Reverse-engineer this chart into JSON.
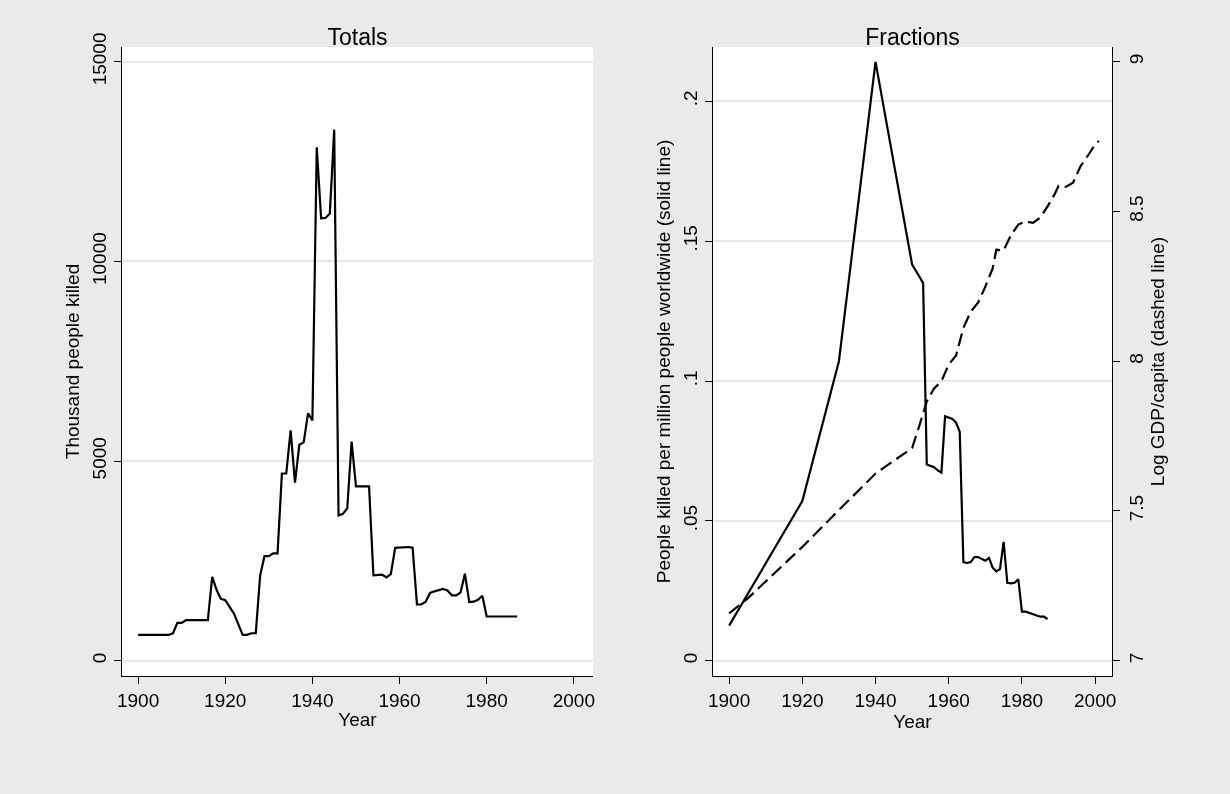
{
  "chart_data": [
    {
      "type": "line",
      "title": "Totals",
      "xlabel": "Year",
      "ylabel": "Thousand people killed",
      "grid": "y",
      "xlim": [
        1896.3,
        2004.4
      ],
      "xticks": [
        1900,
        1920,
        1940,
        1960,
        1980,
        2000
      ],
      "ylim": [
        -380,
        15370
      ],
      "yticks": [
        0,
        5000,
        10000,
        15000
      ],
      "series": [
        {
          "color": "#000000",
          "line_style": "solid",
          "x": [
            1900,
            1907,
            1908,
            1909,
            1910,
            1911,
            1916,
            1917,
            1918,
            1919,
            1920,
            1921,
            1922,
            1924,
            1925,
            1926,
            1927,
            1928,
            1929,
            1930,
            1931,
            1932,
            1933,
            1934,
            1935,
            1936,
            1937,
            1938,
            1939,
            1940,
            1941,
            1942,
            1943,
            1944,
            1945,
            1946,
            1947,
            1948,
            1949,
            1950,
            1953,
            1954,
            1956,
            1957,
            1958,
            1959,
            1962,
            1963,
            1964,
            1965,
            1966,
            1967,
            1968,
            1970,
            1971,
            1972,
            1973,
            1974,
            1975,
            1976,
            1977,
            1978,
            1979,
            1980,
            1987
          ],
          "values": [
            650,
            650,
            690,
            950,
            950,
            1020,
            1020,
            2100,
            1780,
            1550,
            1520,
            1350,
            1180,
            650,
            650,
            690,
            690,
            2130,
            2620,
            2620,
            2690,
            2690,
            4690,
            4690,
            5770,
            4460,
            5410,
            5470,
            6200,
            6020,
            12860,
            11080,
            11090,
            11200,
            13300,
            3640,
            3680,
            3820,
            5490,
            4370,
            4370,
            2140,
            2160,
            2090,
            2170,
            2830,
            2850,
            2830,
            1410,
            1410,
            1480,
            1700,
            1740,
            1800,
            1760,
            1640,
            1640,
            1710,
            2180,
            1470,
            1480,
            1530,
            1630,
            1110,
            1110
          ]
        }
      ]
    },
    {
      "type": "line",
      "title": "Fractions",
      "xlabel": "Year",
      "ylabel": "People killed per million people worldwide (solid line)",
      "y2label": "Log GDP/capita (dashed line)",
      "grid": "y",
      "xlim": [
        1895.6,
        2004.6
      ],
      "xticks": [
        1900,
        1920,
        1940,
        1960,
        1980,
        2000
      ],
      "ylim": [
        -0.0054,
        0.2194
      ],
      "yticks": [
        0,
        {
          "value": 0.05,
          "label": ".05"
        },
        {
          "value": 0.1,
          "label": ".1"
        },
        {
          "value": 0.15,
          "label": ".15"
        },
        {
          "value": 0.2,
          "label": ".2"
        }
      ],
      "y2lim": [
        6.949,
        9.049
      ],
      "y2ticks": [
        7,
        7.5,
        8,
        8.5,
        9
      ],
      "series": [
        {
          "color": "#000000",
          "line_style": "solid",
          "x": [
            1900,
            1920,
            1930,
            1940,
            1950,
            1952,
            1953,
            1954,
            1956,
            1957,
            1958,
            1959,
            1961,
            1962,
            1963,
            1964,
            1965,
            1966,
            1967,
            1968,
            1970,
            1971,
            1972,
            1973,
            1974,
            1975,
            1976,
            1977,
            1978,
            1979,
            1980,
            1981,
            1985,
            1986,
            1987
          ],
          "values": [
            0.0126,
            0.0571,
            0.1071,
            0.2141,
            0.1416,
            0.1373,
            0.135,
            0.0702,
            0.0692,
            0.0681,
            0.0673,
            0.0874,
            0.0865,
            0.0852,
            0.0819,
            0.0353,
            0.035,
            0.0353,
            0.0371,
            0.0371,
            0.0358,
            0.0368,
            0.0333,
            0.032,
            0.0328,
            0.0425,
            0.0279,
            0.0277,
            0.0279,
            0.0292,
            0.0176,
            0.0176,
            0.0158,
            0.0158,
            0.0149
          ]
        },
        {
          "color": "#000000",
          "line_style": "dashed",
          "axis": "y2",
          "x": [
            1900,
            1905,
            1920,
            1930,
            1940,
            1950,
            1952,
            1954,
            1956,
            1958,
            1960,
            1962,
            1964,
            1966,
            1968,
            1970,
            1972,
            1973,
            1975,
            1977,
            1979,
            1981,
            1983,
            1985,
            1987,
            1989,
            1990,
            1992,
            1994,
            1996,
            1998,
            2000,
            2001
          ],
          "values": [
            7.158,
            7.207,
            7.38,
            7.503,
            7.625,
            7.71,
            7.786,
            7.866,
            7.909,
            7.933,
            7.989,
            8.019,
            8.111,
            8.165,
            8.195,
            8.249,
            8.31,
            8.372,
            8.37,
            8.421,
            8.456,
            8.467,
            8.462,
            8.479,
            8.517,
            8.559,
            8.586,
            8.582,
            8.597,
            8.651,
            8.686,
            8.724,
            8.735
          ]
        }
      ]
    }
  ]
}
